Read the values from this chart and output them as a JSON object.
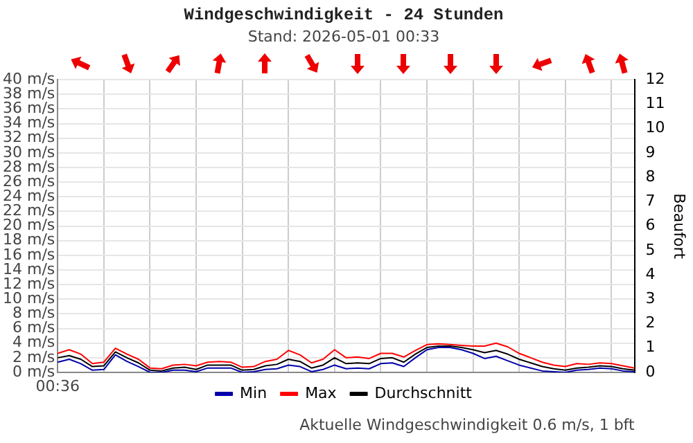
{
  "chart_data": {
    "type": "line",
    "title": "Windgeschwindigkeit - 24 Stunden",
    "subtitle": "Stand: 2026-05-01 00:33",
    "y2label": "Beaufort",
    "categories": [
      null,
      null,
      null,
      null,
      null,
      null,
      null,
      null,
      null,
      null,
      null,
      null,
      null,
      null,
      null,
      null,
      null,
      null,
      null,
      null,
      null,
      null,
      null,
      null,
      null,
      null,
      null,
      null,
      null,
      null,
      null,
      null,
      null,
      null,
      null,
      null,
      null,
      null,
      null,
      null,
      null,
      null,
      null,
      null,
      null,
      null,
      null,
      null,
      null,
      null,
      null
    ],
    "series": [
      {
        "name": "Min",
        "color": "#0000aa",
        "values": [
          1.4,
          1.8,
          1.2,
          0.3,
          0.4,
          2.4,
          1.5,
          0.8,
          0.0,
          0.0,
          0.3,
          0.3,
          0.1,
          0.6,
          0.6,
          0.6,
          0.0,
          0.1,
          0.4,
          0.5,
          1.0,
          0.8,
          0.1,
          0.4,
          1.0,
          0.5,
          0.6,
          0.5,
          1.2,
          1.3,
          0.8,
          2.0,
          3.1,
          3.4,
          3.4,
          3.1,
          2.6,
          1.9,
          2.2,
          1.6,
          1.0,
          0.6,
          0.2,
          0.1,
          0.0,
          0.3,
          0.4,
          0.6,
          0.5,
          0.2,
          0.1
        ]
      },
      {
        "name": "Max",
        "color": "#ff0000",
        "values": [
          2.6,
          3.1,
          2.5,
          1.2,
          1.4,
          3.3,
          2.5,
          1.8,
          0.6,
          0.5,
          1.0,
          1.1,
          0.9,
          1.4,
          1.5,
          1.4,
          0.7,
          0.8,
          1.5,
          1.8,
          3.0,
          2.4,
          1.3,
          1.8,
          3.1,
          2.0,
          2.1,
          1.9,
          2.6,
          2.6,
          2.1,
          3.0,
          3.8,
          3.9,
          3.8,
          3.7,
          3.6,
          3.6,
          4.0,
          3.5,
          2.6,
          2.0,
          1.4,
          1.0,
          0.8,
          1.2,
          1.1,
          1.3,
          1.2,
          0.9,
          0.6
        ]
      },
      {
        "name": "Durchschnitt",
        "color": "#000000",
        "values": [
          2.0,
          2.3,
          1.8,
          0.8,
          0.9,
          2.8,
          2.0,
          1.3,
          0.3,
          0.2,
          0.6,
          0.7,
          0.4,
          1.0,
          1.0,
          1.0,
          0.3,
          0.4,
          0.9,
          1.1,
          1.8,
          1.5,
          0.6,
          1.0,
          2.0,
          1.2,
          1.3,
          1.2,
          1.9,
          2.0,
          1.4,
          2.5,
          3.4,
          3.6,
          3.6,
          3.4,
          3.1,
          2.7,
          3.0,
          2.5,
          1.8,
          1.3,
          0.8,
          0.5,
          0.3,
          0.6,
          0.7,
          0.9,
          0.8,
          0.5,
          0.3
        ]
      }
    ],
    "ylim": [
      0,
      40
    ],
    "yticks": [
      {
        "value": 0,
        "label": "0 m/s"
      },
      {
        "value": 2,
        "label": "2 m/s"
      },
      {
        "value": 4,
        "label": "4 m/s"
      },
      {
        "value": 6,
        "label": "6 m/s"
      },
      {
        "value": 8,
        "label": "8 m/s"
      },
      {
        "value": 10,
        "label": "10 m/s"
      },
      {
        "value": 12,
        "label": "12 m/s"
      },
      {
        "value": 14,
        "label": "14 m/s"
      },
      {
        "value": 16,
        "label": "16 m/s"
      },
      {
        "value": 18,
        "label": "18 m/s"
      },
      {
        "value": 20,
        "label": "20 m/s"
      },
      {
        "value": 22,
        "label": "22 m/s"
      },
      {
        "value": 24,
        "label": "24 m/s"
      },
      {
        "value": 26,
        "label": "26 m/s"
      },
      {
        "value": 28,
        "label": "28 m/s"
      },
      {
        "value": 30,
        "label": "30 m/s"
      },
      {
        "value": 32,
        "label": "32 m/s"
      },
      {
        "value": 34,
        "label": "34 m/s"
      },
      {
        "value": 36,
        "label": "36 m/s"
      },
      {
        "value": 38,
        "label": "38 m/s"
      },
      {
        "value": 40,
        "label": "40 m/s"
      }
    ],
    "y2lim": [
      0,
      12
    ],
    "y2ticks": [
      0,
      1,
      2,
      3,
      4,
      5,
      6,
      7,
      8,
      9,
      10,
      11,
      12
    ],
    "annotations": [
      "00:36",
      "Aktuelle Windgeschwindigkeit 0.6 m/s, 1 bft"
    ],
    "grid": true,
    "legend": "bottom",
    "marker": "none",
    "line_style": "solid"
  }
}
